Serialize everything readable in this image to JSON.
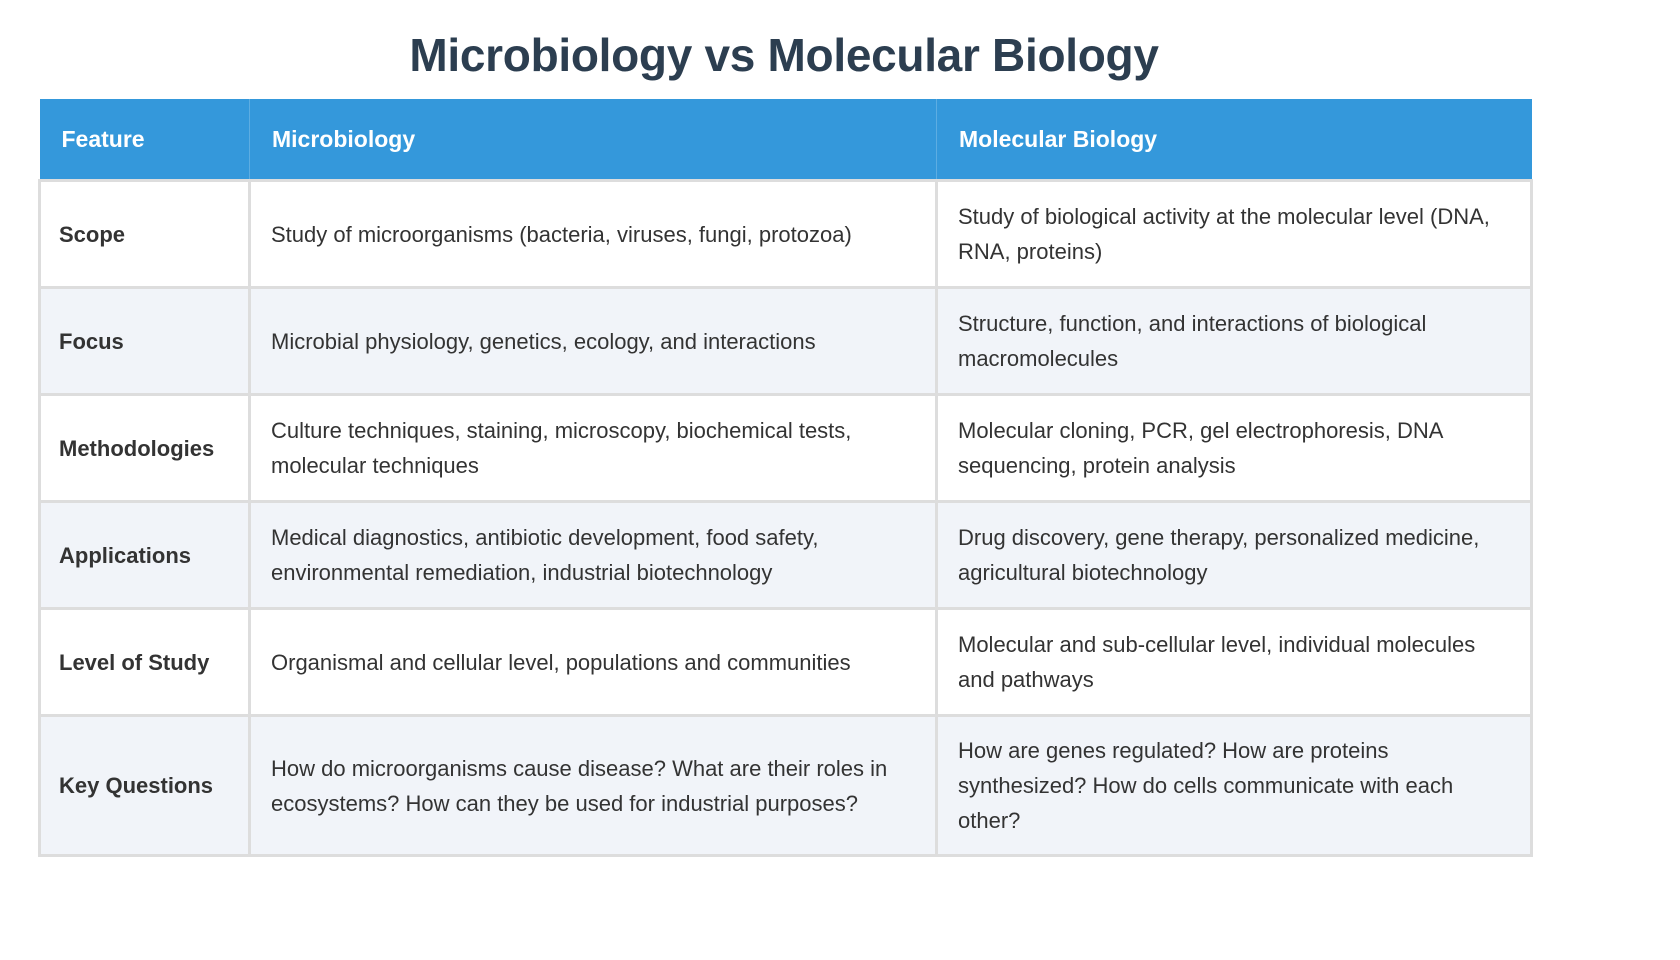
{
  "title": "Microbiology vs Molecular Biology",
  "colors": {
    "header_bg": "#3498db",
    "title_text": "#2c3e50",
    "row_alt_bg": "#f1f4f9",
    "border": "#dddddd"
  },
  "table": {
    "headers": [
      "Feature",
      "Microbiology",
      "Molecular Biology"
    ],
    "rows": [
      {
        "feature": "Scope",
        "microbiology": "Study of microorganisms (bacteria, viruses, fungi, protozoa)",
        "molecular_biology": "Study of biological activity at the molecular level (DNA, RNA, proteins)"
      },
      {
        "feature": "Focus",
        "microbiology": "Microbial physiology, genetics, ecology, and interactions",
        "molecular_biology": "Structure, function, and interactions of biological macromolecules"
      },
      {
        "feature": "Methodologies",
        "microbiology": "Culture techniques, staining, microscopy, biochemical tests, molecular techniques",
        "molecular_biology": "Molecular cloning, PCR, gel electrophoresis, DNA sequencing, protein analysis"
      },
      {
        "feature": "Applications",
        "microbiology": "Medical diagnostics, antibiotic development, food safety, environmental remediation, industrial biotechnology",
        "molecular_biology": "Drug discovery, gene therapy, personalized medicine, agricultural biotechnology"
      },
      {
        "feature": "Level of Study",
        "microbiology": "Organismal and cellular level, populations and communities",
        "molecular_biology": "Molecular and sub-cellular level, individual molecules and pathways"
      },
      {
        "feature": "Key Questions",
        "microbiology": "How do microorganisms cause disease? What are their roles in ecosystems? How can they be used for industrial purposes?",
        "molecular_biology": "How are genes regulated? How are proteins synthesized? How do cells communicate with each other?"
      }
    ]
  }
}
